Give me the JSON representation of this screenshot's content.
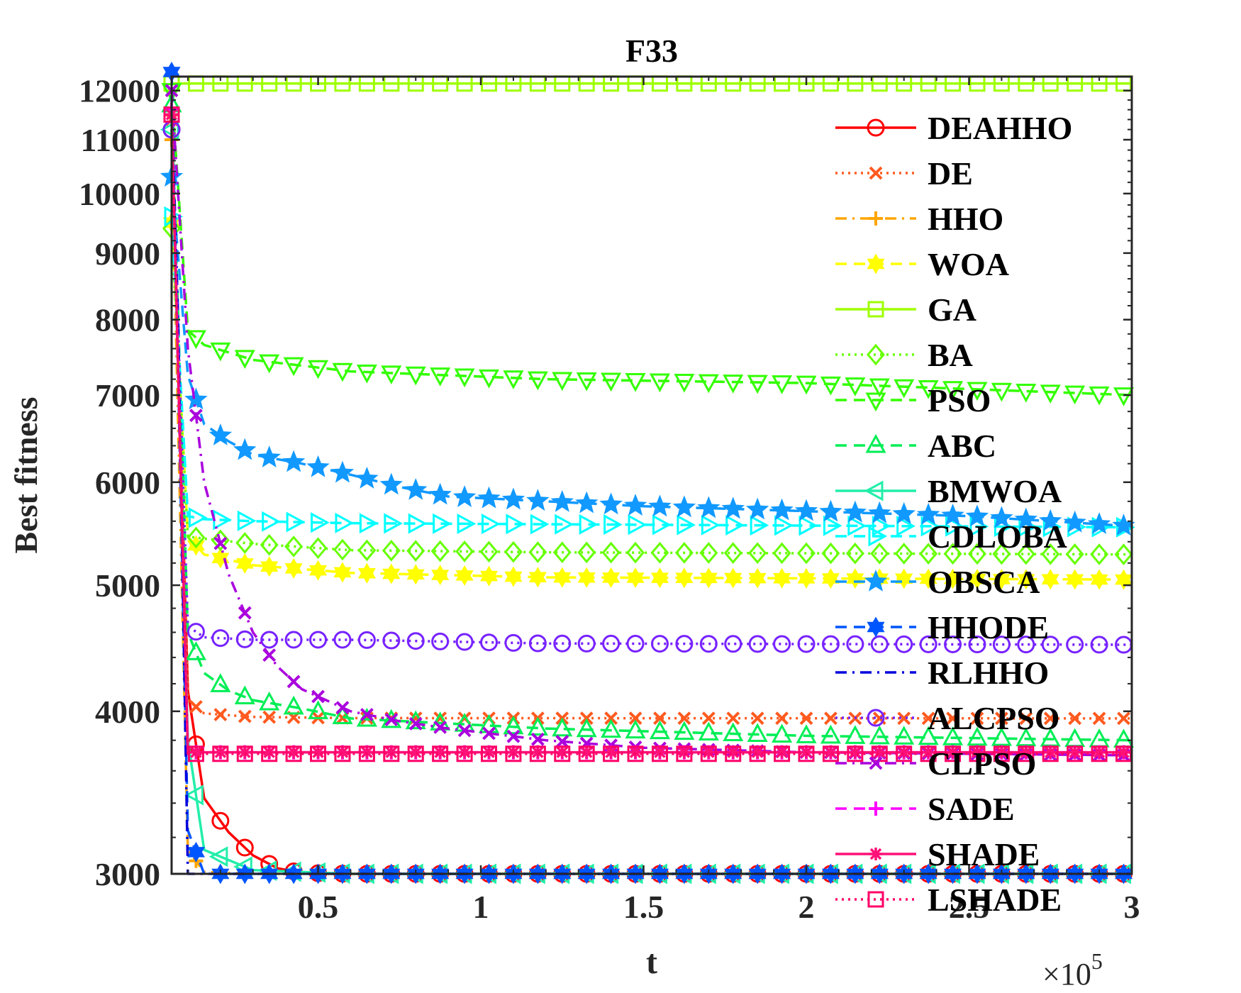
{
  "chart_data": {
    "type": "line",
    "title": "F33",
    "xlabel": "t",
    "ylabel": "Best fitness",
    "x_exponent_label": "×10",
    "x_exponent_power": "5",
    "xlim": [
      0.05,
      3.0
    ],
    "ylim": [
      3000,
      12300
    ],
    "y_scale": "log",
    "grid": false,
    "legend_position": "top-right",
    "x_ticks": [
      {
        "value": 0.5,
        "label": "0.5"
      },
      {
        "value": 1.0,
        "label": "1"
      },
      {
        "value": 1.5,
        "label": "1.5"
      },
      {
        "value": 2.0,
        "label": "2"
      },
      {
        "value": 2.5,
        "label": "2.5"
      },
      {
        "value": 3.0,
        "label": "3"
      }
    ],
    "y_ticks": [
      {
        "value": 3000,
        "label": "3000"
      },
      {
        "value": 4000,
        "label": "4000"
      },
      {
        "value": 5000,
        "label": "5000"
      },
      {
        "value": 6000,
        "label": "6000"
      },
      {
        "value": 7000,
        "label": "7000"
      },
      {
        "value": 8000,
        "label": "8000"
      },
      {
        "value": 9000,
        "label": "9000"
      },
      {
        "value": 10000,
        "label": "10000"
      },
      {
        "value": 11000,
        "label": "11000"
      },
      {
        "value": 12000,
        "label": "12000"
      }
    ],
    "series": [
      {
        "name": "DEAHHO",
        "color": "#ff0000",
        "dash": "solid",
        "marker": "circle",
        "points": [
          [
            0.05,
            11200
          ],
          [
            0.1,
            4150
          ],
          [
            0.15,
            3430
          ],
          [
            0.225,
            3230
          ],
          [
            0.3,
            3100
          ],
          [
            0.375,
            3030
          ],
          [
            0.45,
            3005
          ],
          [
            0.6,
            3000
          ],
          [
            3.0,
            3000
          ]
        ]
      },
      {
        "name": "DE",
        "color": "#ff5a1f",
        "dash": "dotted",
        "marker": "x",
        "points": [
          [
            0.05,
            11400
          ],
          [
            0.1,
            4080
          ],
          [
            0.15,
            3985
          ],
          [
            0.3,
            3960
          ],
          [
            0.6,
            3952
          ],
          [
            3.0,
            3950
          ]
        ]
      },
      {
        "name": "HHO",
        "color": "#ffa500",
        "dash": "dashdot",
        "marker": "plus",
        "points": [
          [
            0.05,
            11000
          ],
          [
            0.1,
            3130
          ],
          [
            0.15,
            3010
          ],
          [
            0.3,
            3000
          ],
          [
            3.0,
            3000
          ]
        ]
      },
      {
        "name": "WOA",
        "color": "#ffff00",
        "dash": "dashed",
        "marker": "hexagram",
        "points": [
          [
            0.05,
            9500
          ],
          [
            0.1,
            5450
          ],
          [
            0.15,
            5280
          ],
          [
            0.3,
            5180
          ],
          [
            0.6,
            5110
          ],
          [
            1.2,
            5070
          ],
          [
            3.0,
            5050
          ]
        ]
      },
      {
        "name": "GA",
        "color": "#9eff00",
        "dash": "solid",
        "marker": "square",
        "points": [
          [
            0.05,
            12150
          ],
          [
            0.1,
            12150
          ],
          [
            3.0,
            12150
          ]
        ]
      },
      {
        "name": "BA",
        "color": "#66ff00",
        "dash": "dotted",
        "marker": "diamond",
        "points": [
          [
            0.05,
            9400
          ],
          [
            0.1,
            5450
          ],
          [
            0.15,
            5430
          ],
          [
            0.3,
            5380
          ],
          [
            0.6,
            5320
          ],
          [
            1.2,
            5300
          ],
          [
            3.0,
            5280
          ]
        ]
      },
      {
        "name": "PSO",
        "color": "#33ff00",
        "dash": "dashed",
        "marker": "triangle-down",
        "points": [
          [
            0.05,
            12000
          ],
          [
            0.1,
            7850
          ],
          [
            0.15,
            7650
          ],
          [
            0.3,
            7450
          ],
          [
            0.6,
            7300
          ],
          [
            1.2,
            7200
          ],
          [
            2.0,
            7150
          ],
          [
            3.0,
            7000
          ]
        ]
      },
      {
        "name": "ABC",
        "color": "#00ee55",
        "dash": "dashed",
        "marker": "triangle-up",
        "points": [
          [
            0.05,
            11700
          ],
          [
            0.1,
            4600
          ],
          [
            0.15,
            4280
          ],
          [
            0.225,
            4150
          ],
          [
            0.3,
            4080
          ],
          [
            0.45,
            4020
          ],
          [
            0.6,
            3950
          ],
          [
            1.2,
            3880
          ],
          [
            2.0,
            3830
          ],
          [
            3.0,
            3800
          ]
        ]
      },
      {
        "name": "BMWOA",
        "color": "#22eeaa",
        "dash": "solid",
        "marker": "triangle-left",
        "points": [
          [
            0.05,
            11200
          ],
          [
            0.1,
            3800
          ],
          [
            0.15,
            3130
          ],
          [
            0.3,
            3020
          ],
          [
            0.6,
            3000
          ],
          [
            3.0,
            3000
          ]
        ]
      },
      {
        "name": "CDLOBA",
        "color": "#00ffff",
        "dash": "dashed",
        "marker": "triangle-right",
        "points": [
          [
            0.05,
            9600
          ],
          [
            0.1,
            5650
          ],
          [
            0.15,
            5620
          ],
          [
            0.3,
            5600
          ],
          [
            0.6,
            5580
          ],
          [
            1.2,
            5570
          ],
          [
            3.0,
            5540
          ]
        ]
      },
      {
        "name": "OBSCA",
        "color": "#1199ff",
        "dash": "dashed",
        "marker": "pentagram",
        "points": [
          [
            0.05,
            10300
          ],
          [
            0.1,
            7250
          ],
          [
            0.15,
            6650
          ],
          [
            0.225,
            6450
          ],
          [
            0.3,
            6300
          ],
          [
            0.45,
            6200
          ],
          [
            0.6,
            6080
          ],
          [
            0.75,
            5950
          ],
          [
            0.9,
            5850
          ],
          [
            1.2,
            5800
          ],
          [
            1.5,
            5750
          ],
          [
            2.0,
            5700
          ],
          [
            2.5,
            5650
          ],
          [
            3.0,
            5550
          ]
        ]
      },
      {
        "name": "HHODE",
        "color": "#0055ff",
        "dash": "dashed",
        "marker": "hexagram",
        "points": [
          [
            0.05,
            12400
          ],
          [
            0.1,
            3240
          ],
          [
            0.15,
            3000
          ],
          [
            3.0,
            3000
          ]
        ]
      },
      {
        "name": "RLHHO",
        "color": "#0000dd",
        "dash": "dashdot",
        "marker": "none",
        "points": [
          [
            0.05,
            11800
          ],
          [
            0.07,
            8000
          ],
          [
            0.1,
            3000
          ],
          [
            3.0,
            3000
          ]
        ]
      },
      {
        "name": "ALCPSO",
        "color": "#7722ff",
        "dash": "dotted",
        "marker": "circle",
        "points": [
          [
            0.05,
            11200
          ],
          [
            0.1,
            4650
          ],
          [
            0.15,
            4560
          ],
          [
            0.3,
            4540
          ],
          [
            0.6,
            4540
          ],
          [
            1.2,
            4510
          ],
          [
            3.0,
            4500
          ]
        ]
      },
      {
        "name": "CLPSO",
        "color": "#aa00dd",
        "dash": "dashdot",
        "marker": "x",
        "points": [
          [
            0.05,
            12000
          ],
          [
            0.1,
            7600
          ],
          [
            0.15,
            6000
          ],
          [
            0.225,
            5100
          ],
          [
            0.3,
            4600
          ],
          [
            0.375,
            4330
          ],
          [
            0.45,
            4160
          ],
          [
            0.6,
            4000
          ],
          [
            0.75,
            3930
          ],
          [
            0.9,
            3880
          ],
          [
            1.2,
            3800
          ],
          [
            1.5,
            3750
          ],
          [
            2.0,
            3720
          ],
          [
            2.5,
            3710
          ],
          [
            3.0,
            3700
          ]
        ]
      },
      {
        "name": "SADE",
        "color": "#ff00ff",
        "dash": "dashed",
        "marker": "plus",
        "points": [
          [
            0.05,
            11600
          ],
          [
            0.1,
            3720
          ],
          [
            0.15,
            3720
          ],
          [
            3.0,
            3720
          ]
        ]
      },
      {
        "name": "SHADE",
        "color": "#ff1177",
        "dash": "solid",
        "marker": "asterisk",
        "points": [
          [
            0.05,
            11500
          ],
          [
            0.1,
            3720
          ],
          [
            0.15,
            3720
          ],
          [
            3.0,
            3720
          ]
        ]
      },
      {
        "name": "LSHADE",
        "color": "#ff0066",
        "dash": "dotted",
        "marker": "square",
        "points": [
          [
            0.05,
            11500
          ],
          [
            0.1,
            3710
          ],
          [
            0.15,
            3710
          ],
          [
            3.0,
            3710
          ]
        ]
      }
    ]
  }
}
